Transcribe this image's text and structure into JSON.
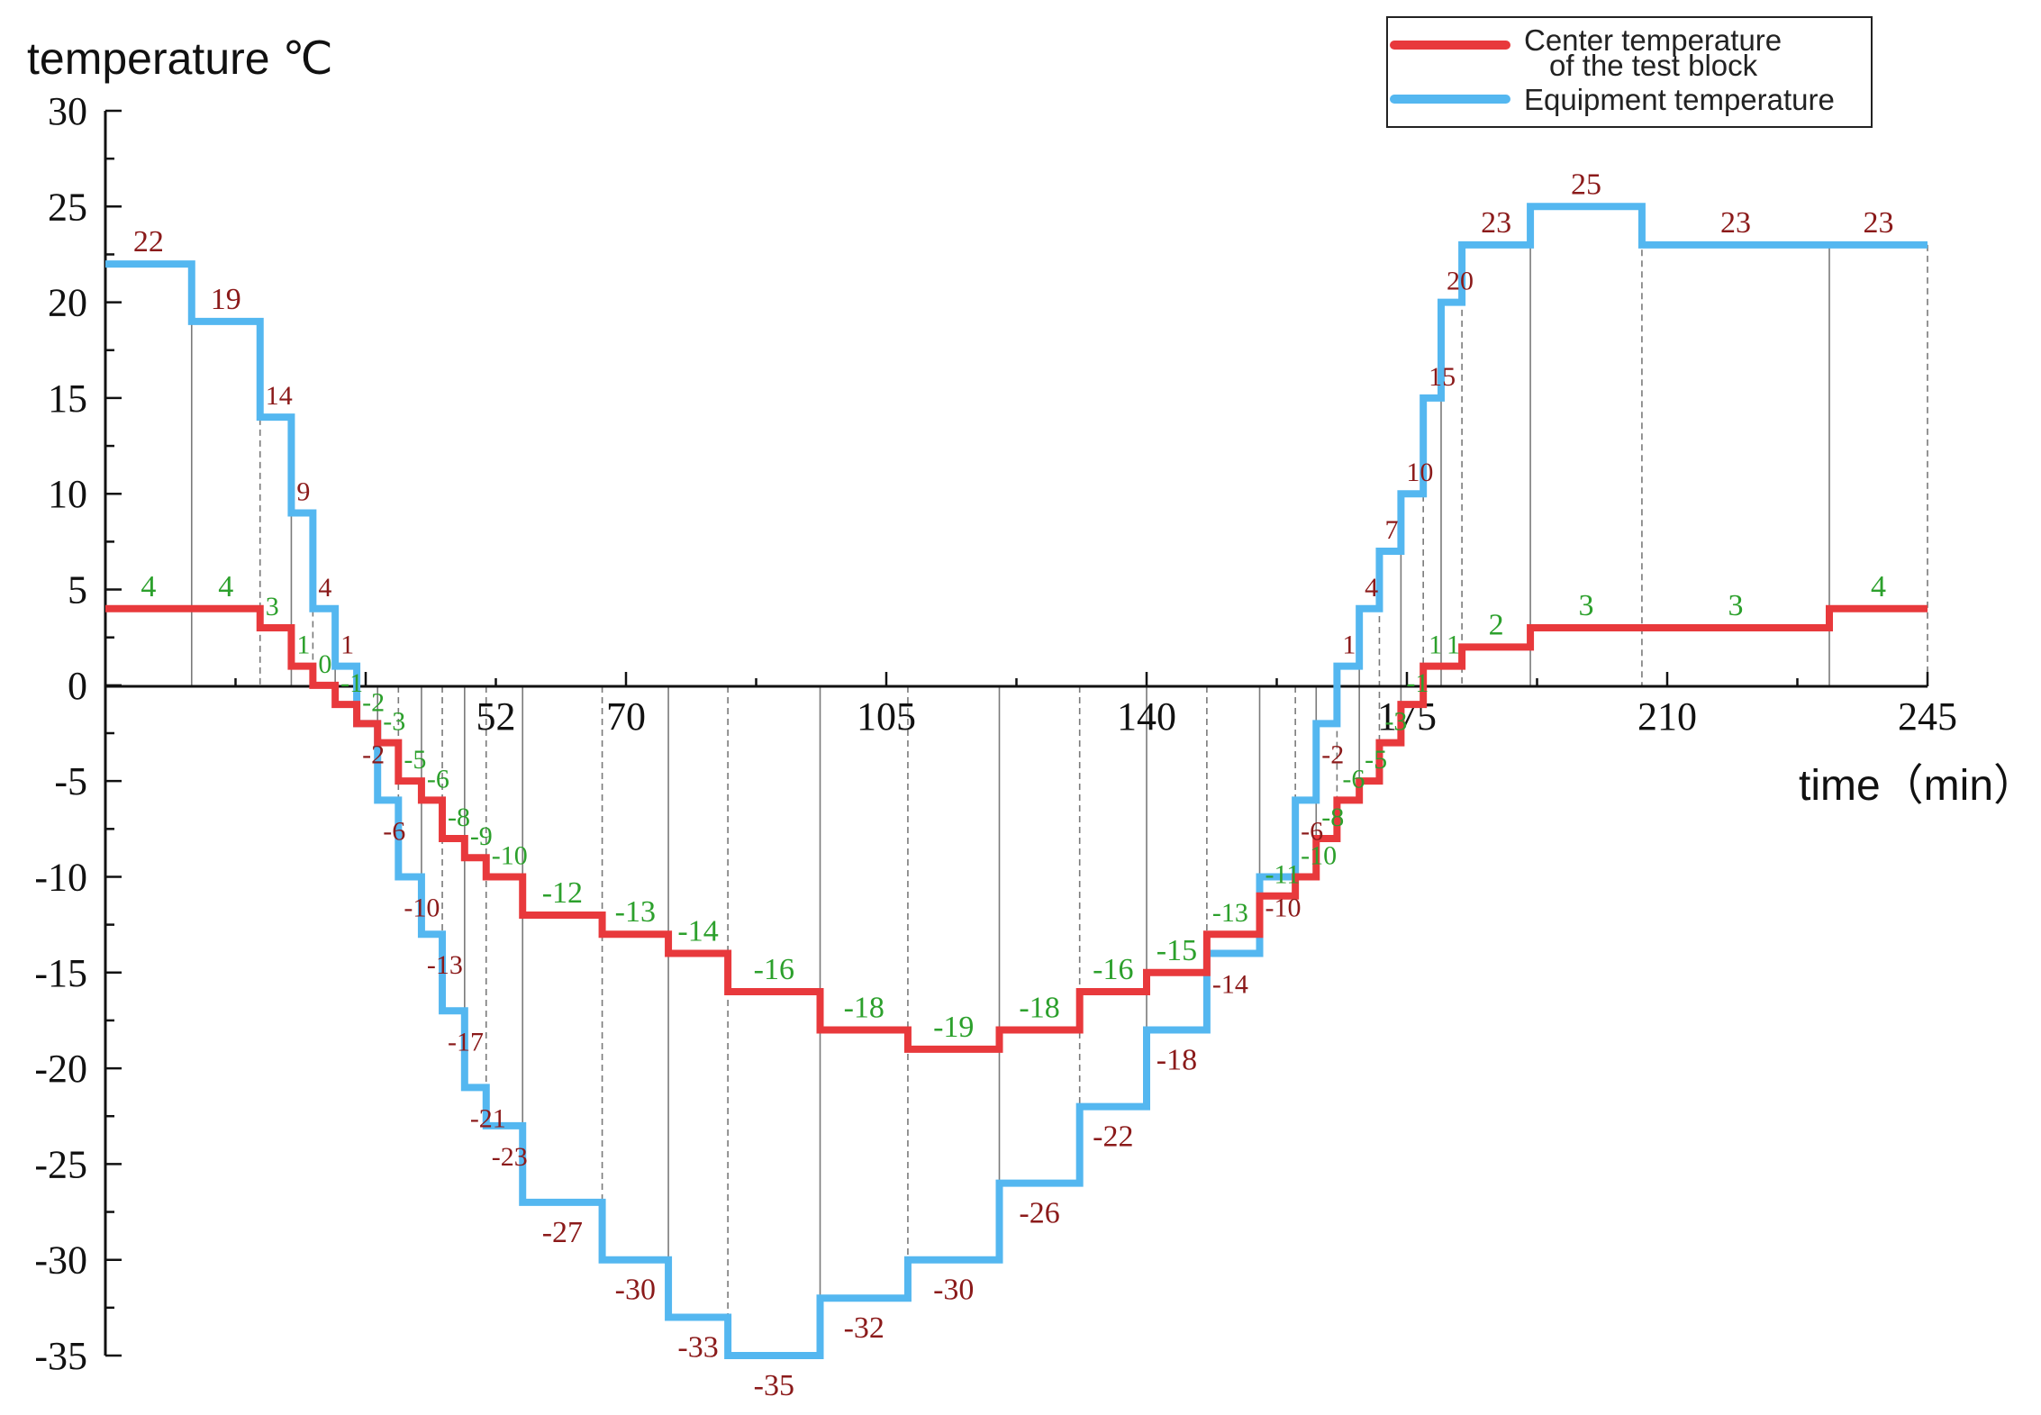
{
  "chart_data": {
    "type": "line",
    "step": true,
    "ylabel": "temperature ℃",
    "xlabel": "time（min）",
    "xlim": [
      0,
      245
    ],
    "ylim": [
      -35,
      30
    ],
    "x_ticks": [
      {
        "value": 52.5,
        "label": "52"
      },
      {
        "value": 70,
        "label": "70"
      },
      {
        "value": 105,
        "label": "105"
      },
      {
        "value": 140,
        "label": "140"
      },
      {
        "value": 175,
        "label": "175"
      },
      {
        "value": 210,
        "label": "210"
      },
      {
        "value": 245,
        "label": "245"
      }
    ],
    "y_ticks": [
      {
        "value": 30,
        "label": "30"
      },
      {
        "value": 25,
        "label": "25"
      },
      {
        "value": 20,
        "label": "20"
      },
      {
        "value": 15,
        "label": "15"
      },
      {
        "value": 10,
        "label": "10"
      },
      {
        "value": 5,
        "label": "5"
      },
      {
        "value": 0,
        "label": "0"
      },
      {
        "value": -5,
        "label": "-5"
      },
      {
        "value": -10,
        "label": "-10"
      },
      {
        "value": -15,
        "label": "-15"
      },
      {
        "value": -20,
        "label": "-20"
      },
      {
        "value": -25,
        "label": "-25"
      },
      {
        "value": -30,
        "label": "-30"
      },
      {
        "value": -35,
        "label": "-35"
      }
    ],
    "grid": false,
    "legend_position": "top-right",
    "colors": {
      "center": "#e8393c",
      "equipment": "#54b7f0",
      "center_label": "#2ca02c",
      "equipment_label": "#8b1a1a",
      "divider": "#7a7a7a"
    },
    "step_edges": [
      0,
      11.6,
      20.8,
      25,
      27.9,
      30.9,
      33.8,
      36.6,
      39.4,
      42.5,
      45.3,
      48.3,
      51.2,
      56.1,
      66.8,
      75.7,
      83.7,
      96.1,
      107.9,
      120.2,
      131.0,
      140.0,
      148.1,
      155.2,
      160.0,
      162.8,
      165.6,
      168.6,
      171.3,
      174.2,
      177.2,
      179.6,
      182.4,
      191.6,
      206.6,
      231.8,
      245
    ],
    "series": [
      {
        "name": "Center temperature of the test block",
        "values": [
          4,
          4,
          3,
          1,
          0,
          -1,
          -2,
          -3,
          -5,
          -6,
          -8,
          -9,
          -10,
          -12,
          -13,
          -14,
          -16,
          -18,
          -19,
          -18,
          -16,
          -15,
          -13,
          -11,
          -10,
          -8,
          -6,
          -5,
          -3,
          -1,
          1,
          1,
          2,
          3,
          3,
          4
        ],
        "labels": [
          "4",
          "4",
          "3",
          "1",
          "0",
          "-1",
          "-2",
          "-3",
          "-5",
          "-6",
          "-8",
          "-9",
          "-10",
          "-12",
          "-13",
          "-14",
          "-16",
          "-18",
          "-19",
          "-18",
          "-16",
          "-15",
          "-13",
          "-11",
          "-10",
          "-8",
          "-6",
          "-5",
          "-3",
          "-1",
          "1",
          "1",
          "2",
          "3",
          "3",
          "4"
        ]
      },
      {
        "name": "Equipment temperature",
        "values": [
          22,
          19,
          14,
          9,
          4,
          1,
          -2,
          -6,
          -10,
          -13,
          -17,
          -21,
          -23,
          -27,
          -30,
          -33,
          -35,
          -32,
          -30,
          -26,
          -22,
          -18,
          -14,
          -10,
          -6,
          -2,
          1,
          4,
          7,
          10,
          15,
          20,
          23,
          25,
          23,
          23
        ],
        "labels": [
          "22",
          "19",
          "14",
          "9",
          "4",
          "1",
          "-2",
          "-6",
          "-10",
          "-13",
          "-17",
          "-21",
          "-23",
          "-27",
          "-30",
          "-33",
          "-35",
          "-32",
          "-30",
          "-26",
          "-22",
          "-18",
          "-14",
          "-10",
          "-6",
          "-2",
          "1",
          "4",
          "7",
          "10",
          "15",
          "20",
          "23",
          "25",
          "23",
          "23"
        ]
      }
    ],
    "legend": [
      {
        "series": "Center temperature of the test block",
        "line1": "Center temperature",
        "line2": "of the test block"
      },
      {
        "series": "Equipment temperature",
        "line1": "Equipment temperature"
      }
    ]
  }
}
